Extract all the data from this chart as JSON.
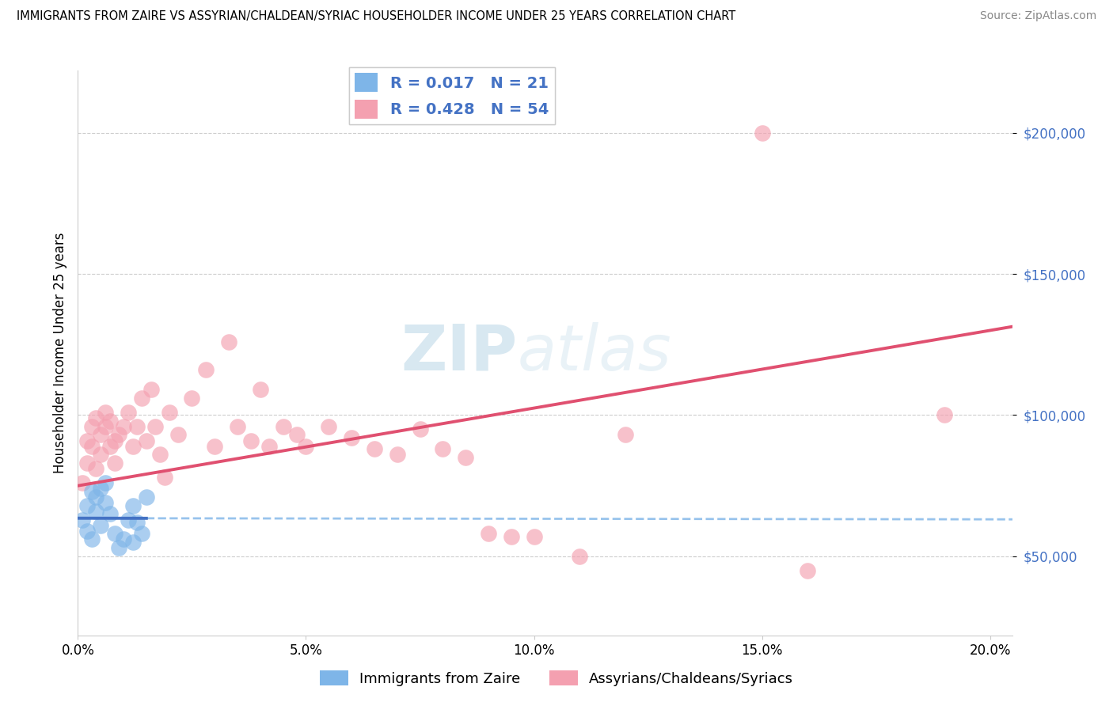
{
  "title": "IMMIGRANTS FROM ZAIRE VS ASSYRIAN/CHALDEAN/SYRIAC HOUSEHOLDER INCOME UNDER 25 YEARS CORRELATION CHART",
  "source": "Source: ZipAtlas.com",
  "ylabel": "Householder Income Under 25 years",
  "watermark_zip": "ZIP",
  "watermark_atlas": "atlas",
  "xlim": [
    0.0,
    0.205
  ],
  "ylim": [
    22000,
    222000
  ],
  "yticks": [
    50000,
    100000,
    150000,
    200000
  ],
  "ytick_labels": [
    "$50,000",
    "$100,000",
    "$150,000",
    "$200,000"
  ],
  "xtick_labels": [
    "0.0%",
    "5.0%",
    "10.0%",
    "15.0%",
    "20.0%"
  ],
  "xticks": [
    0.0,
    0.05,
    0.1,
    0.15,
    0.2
  ],
  "legend_label1": "Immigrants from Zaire",
  "legend_label2": "Assyrians/Chaldeans/Syriacs",
  "R1": "0.017",
  "N1": "21",
  "R2": "0.428",
  "N2": "54",
  "color1": "#7EB5E8",
  "color2": "#F4A0B0",
  "line_color1_solid": "#4472C4",
  "line_color1_dash": "#7EB5E8",
  "line_color2": "#E05070",
  "blue_x": [
    0.001,
    0.002,
    0.002,
    0.003,
    0.003,
    0.004,
    0.004,
    0.005,
    0.005,
    0.006,
    0.006,
    0.007,
    0.008,
    0.009,
    0.01,
    0.011,
    0.012,
    0.012,
    0.013,
    0.014,
    0.015
  ],
  "blue_y": [
    63000,
    59000,
    68000,
    73000,
    56000,
    71000,
    66000,
    74000,
    61000,
    69000,
    76000,
    65000,
    58000,
    53000,
    56000,
    63000,
    55000,
    68000,
    62000,
    58000,
    71000
  ],
  "pink_x": [
    0.001,
    0.002,
    0.002,
    0.003,
    0.003,
    0.004,
    0.004,
    0.005,
    0.005,
    0.006,
    0.006,
    0.007,
    0.007,
    0.008,
    0.008,
    0.009,
    0.01,
    0.011,
    0.012,
    0.013,
    0.014,
    0.015,
    0.016,
    0.017,
    0.018,
    0.019,
    0.02,
    0.022,
    0.025,
    0.028,
    0.03,
    0.033,
    0.035,
    0.038,
    0.04,
    0.042,
    0.045,
    0.048,
    0.05,
    0.055,
    0.06,
    0.065,
    0.07,
    0.075,
    0.08,
    0.085,
    0.09,
    0.095,
    0.1,
    0.11,
    0.12,
    0.15,
    0.16,
    0.19
  ],
  "pink_y": [
    76000,
    83000,
    91000,
    89000,
    96000,
    81000,
    99000,
    86000,
    93000,
    96000,
    101000,
    89000,
    98000,
    83000,
    91000,
    93000,
    96000,
    101000,
    89000,
    96000,
    106000,
    91000,
    109000,
    96000,
    86000,
    78000,
    101000,
    93000,
    106000,
    116000,
    89000,
    126000,
    96000,
    91000,
    109000,
    89000,
    96000,
    93000,
    89000,
    96000,
    92000,
    88000,
    86000,
    95000,
    88000,
    85000,
    58000,
    57000,
    57000,
    50000,
    93000,
    200000,
    45000,
    100000
  ]
}
